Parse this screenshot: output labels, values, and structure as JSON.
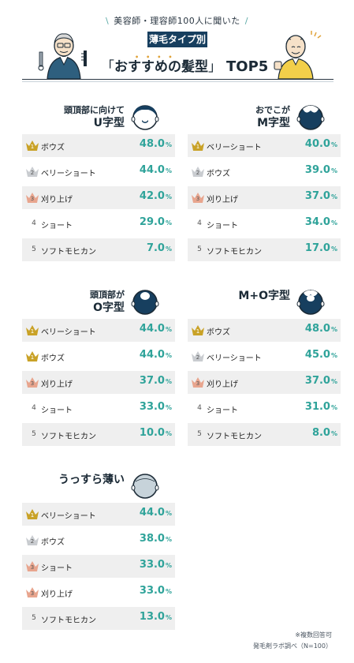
{
  "header": {
    "kicker": "美容師・理容師100人に聞いた",
    "badge": "薄毛タイプ別",
    "headline_open": "「",
    "headline_main": "おすすめの髪型",
    "headline_close": "」",
    "headline_top": "TOP5",
    "colors": {
      "navy": "#173f5f",
      "teal": "#2fa39a",
      "gold": "#c9a227"
    }
  },
  "panels": [
    {
      "title_l1": "頭頂部に向けて",
      "title_l2": "U字型",
      "icon": "u-type-head-icon",
      "rows": [
        {
          "rank": "1",
          "medal": "gold",
          "name": "ボウズ",
          "value": "48.0",
          "unit": "%"
        },
        {
          "rank": "2",
          "medal": "silver",
          "name": "ベリーショート",
          "value": "44.0",
          "unit": "%"
        },
        {
          "rank": "3",
          "medal": "bronze",
          "name": "刈り上げ",
          "value": "42.0",
          "unit": "%"
        },
        {
          "rank": "4",
          "medal": "none",
          "name": "ショート",
          "value": "29.0",
          "unit": "%"
        },
        {
          "rank": "5",
          "medal": "none",
          "name": "ソフトモヒカン",
          "value": "7.0",
          "unit": "%"
        }
      ]
    },
    {
      "title_l1": "おでこが",
      "title_l2": "M字型",
      "icon": "m-type-head-icon",
      "rows": [
        {
          "rank": "1",
          "medal": "gold",
          "name": "ベリーショート",
          "value": "40.0",
          "unit": "%"
        },
        {
          "rank": "2",
          "medal": "silver",
          "name": "ボウズ",
          "value": "39.0",
          "unit": "%"
        },
        {
          "rank": "3",
          "medal": "bronze",
          "name": "刈り上げ",
          "value": "37.0",
          "unit": "%"
        },
        {
          "rank": "4",
          "medal": "none",
          "name": "ショート",
          "value": "34.0",
          "unit": "%"
        },
        {
          "rank": "5",
          "medal": "none",
          "name": "ソフトモヒカン",
          "value": "17.0",
          "unit": "%"
        }
      ]
    },
    {
      "title_l1": "頭頂部が",
      "title_l2": "O字型",
      "icon": "o-type-head-icon",
      "rows": [
        {
          "rank": "1",
          "medal": "gold",
          "name": "ベリーショート",
          "value": "44.0",
          "unit": "%"
        },
        {
          "rank": "1",
          "medal": "gold",
          "name": "ボウズ",
          "value": "44.0",
          "unit": "%"
        },
        {
          "rank": "3",
          "medal": "bronze",
          "name": "刈り上げ",
          "value": "37.0",
          "unit": "%"
        },
        {
          "rank": "4",
          "medal": "none",
          "name": "ショート",
          "value": "33.0",
          "unit": "%"
        },
        {
          "rank": "5",
          "medal": "none",
          "name": "ソフトモヒカン",
          "value": "10.0",
          "unit": "%"
        }
      ]
    },
    {
      "title_l1": "",
      "title_l2": "M+O字型",
      "icon": "mo-type-head-icon",
      "rows": [
        {
          "rank": "1",
          "medal": "gold",
          "name": "ボウズ",
          "value": "48.0",
          "unit": "%"
        },
        {
          "rank": "2",
          "medal": "silver",
          "name": "ベリーショート",
          "value": "45.0",
          "unit": "%"
        },
        {
          "rank": "3",
          "medal": "bronze",
          "name": "刈り上げ",
          "value": "37.0",
          "unit": "%"
        },
        {
          "rank": "4",
          "medal": "none",
          "name": "ショート",
          "value": "31.0",
          "unit": "%"
        },
        {
          "rank": "5",
          "medal": "none",
          "name": "ソフトモヒカン",
          "value": "8.0",
          "unit": "%"
        }
      ]
    },
    {
      "title_l1": "",
      "title_l2": "うっすら薄い",
      "icon": "thin-type-head-icon",
      "rows": [
        {
          "rank": "1",
          "medal": "gold",
          "name": "ベリーショート",
          "value": "44.0",
          "unit": "%"
        },
        {
          "rank": "2",
          "medal": "silver",
          "name": "ボウズ",
          "value": "38.0",
          "unit": "%"
        },
        {
          "rank": "3",
          "medal": "bronze",
          "name": "ショート",
          "value": "33.0",
          "unit": "%"
        },
        {
          "rank": "3",
          "medal": "bronze",
          "name": "刈り上げ",
          "value": "33.0",
          "unit": "%"
        },
        {
          "rank": "5",
          "medal": "none",
          "name": "ソフトモヒカン",
          "value": "13.0",
          "unit": "%"
        }
      ]
    }
  ],
  "footnote": {
    "line1": "※複数回答可",
    "line2": "発毛剤ラボ調べ（N=100）"
  }
}
